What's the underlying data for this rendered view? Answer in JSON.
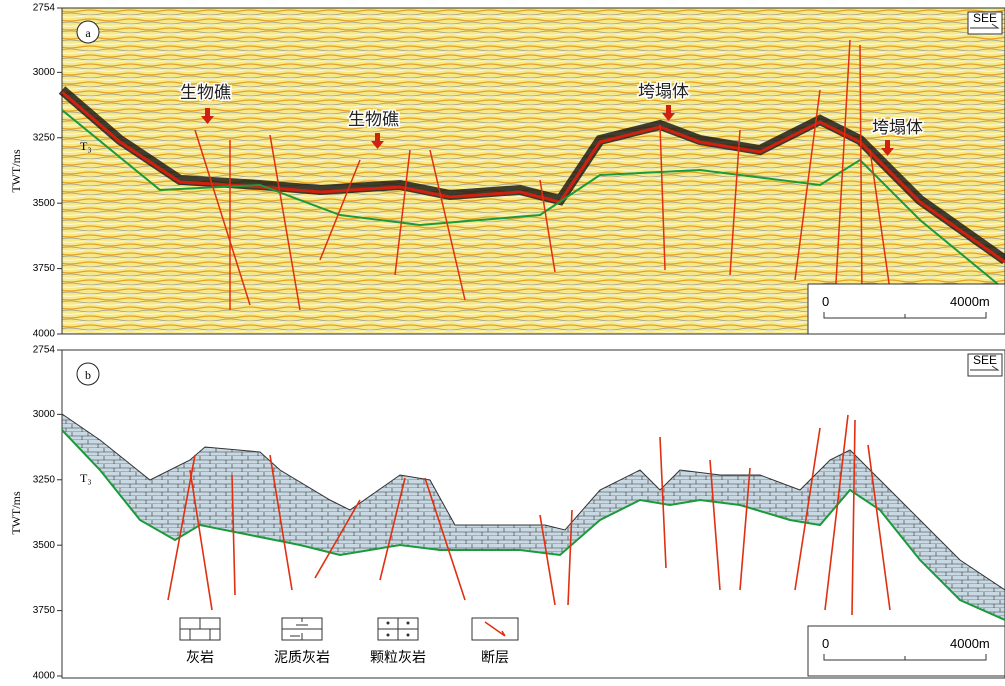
{
  "panels": [
    {
      "label": "a",
      "compass": "SEE",
      "axis_label": "TWT/ms",
      "horizon": "T₃",
      "ticks": [
        2754,
        3000,
        3250,
        3500,
        3750,
        4000
      ],
      "annotations": [
        "生物礁",
        "生物礁",
        "垮塌体",
        "垮塌体"
      ],
      "scale": {
        "start": "0",
        "end": "4000m"
      }
    },
    {
      "label": "b",
      "compass": "SEE",
      "axis_label": "TWT/ms",
      "horizon": "T₃",
      "ticks": [
        2754,
        3000,
        3250,
        3500,
        3750,
        4000
      ],
      "scale": {
        "start": "0",
        "end": "4000m"
      },
      "legend": [
        "灰岩",
        "泥质灰岩",
        "颗粒灰岩",
        "断层"
      ]
    }
  ]
}
